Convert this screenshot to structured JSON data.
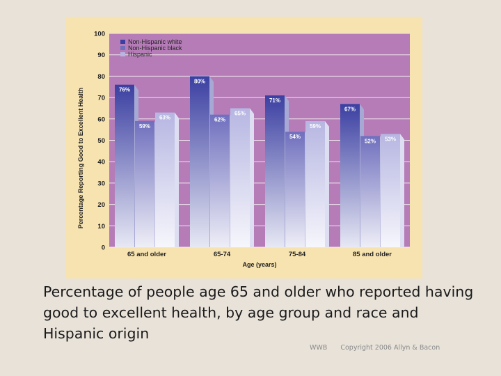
{
  "chart_data": {
    "type": "bar",
    "title": "",
    "xlabel": "Age (years)",
    "ylabel": "Percentage Reporting Good to Excellent Health",
    "ylim": [
      0,
      100
    ],
    "yticks": [
      "0",
      "10",
      "20",
      "30",
      "40",
      "50",
      "60",
      "70",
      "80",
      "90",
      "100"
    ],
    "categories": [
      "65 and older",
      "65-74",
      "75-84",
      "85 and older"
    ],
    "legend_position": "top-left",
    "series": [
      {
        "name": "Non-Hispanic white",
        "values": [
          76,
          80,
          71,
          67
        ],
        "labels": [
          "76%",
          "80%",
          "71%",
          "67%"
        ],
        "color": "#3b3fa1"
      },
      {
        "name": "Non-Hispanic black",
        "values": [
          59,
          62,
          54,
          52
        ],
        "labels": [
          "59%",
          "62%",
          "54%",
          "52%"
        ],
        "color": "#6f6fbe"
      },
      {
        "name": "Hispanic",
        "values": [
          63,
          65,
          59,
          53
        ],
        "labels": [
          "63%",
          "65%",
          "59%",
          "53%"
        ],
        "color": "#b6b6e2"
      }
    ],
    "colors": {
      "panel": "#f7e3b0",
      "plot_bg": "#b57cb7",
      "grid": "#f1e7ee"
    }
  },
  "caption": "Percentage of people age 65 and older who reported having good to excellent health, by age group and race and Hispanic origin",
  "footer": {
    "code": "WWB",
    "copyright": "Copyright 2006 Allyn & Bacon"
  }
}
